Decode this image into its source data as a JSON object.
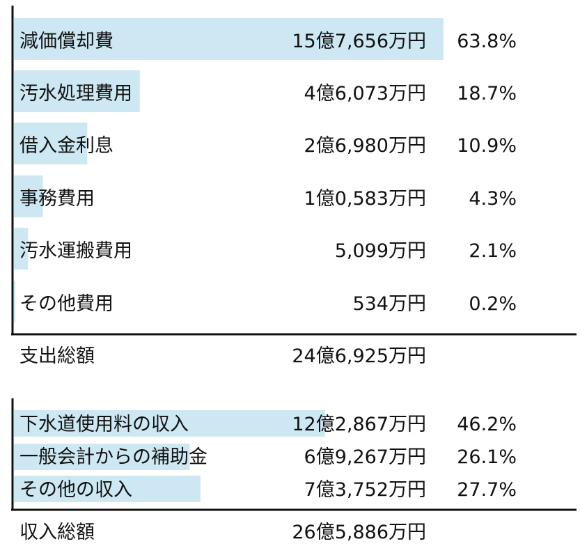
{
  "chart_data": [
    {
      "type": "bar",
      "orientation": "horizontal",
      "accent_color": "#cde8f3",
      "categories": [
        "減価償却費",
        "汚水処理費用",
        "借入金利息",
        "事務費用",
        "汚水運搬費用",
        "その他費用"
      ],
      "amounts": [
        "15億7,656万円",
        "4億6,073万円",
        "2億6,980万円",
        "1億0,583万円",
        "5,099万円",
        "534万円"
      ],
      "percents": [
        "63.8%",
        "18.7%",
        "10.9%",
        "4.3%",
        "2.1%",
        "0.2%"
      ],
      "values": [
        63.8,
        18.7,
        10.9,
        4.3,
        2.1,
        0.2
      ],
      "total_label": "支出総額",
      "total_amount": "24億6,925万円"
    },
    {
      "type": "bar",
      "orientation": "horizontal",
      "accent_color": "#cde8f3",
      "categories": [
        "下水道使用料の収入",
        "一般会計からの補助金",
        "その他の収入"
      ],
      "amounts": [
        "12億2,867万円",
        "6億9,267万円",
        "7億3,752万円"
      ],
      "percents": [
        "46.2%",
        "26.1%",
        "27.7%"
      ],
      "values": [
        46.2,
        26.1,
        27.7
      ],
      "total_label": "収入総額",
      "total_amount": "26億5,886万円"
    }
  ]
}
